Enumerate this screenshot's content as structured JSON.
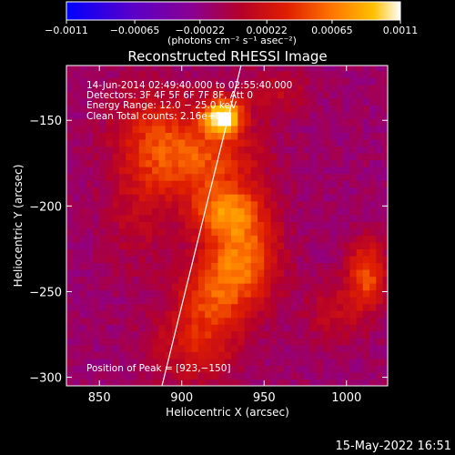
{
  "chart_data": {
    "type": "heatmap",
    "title": "Reconstructed RHESSI Image",
    "xlabel": "Heliocentric X (arcsec)",
    "ylabel": "Heliocentric Y (arcsec)",
    "xlim": [
      830,
      1025
    ],
    "ylim": [
      -305,
      -118
    ],
    "x_ticks": [
      {
        "value": 850,
        "label": "850"
      },
      {
        "value": 900,
        "label": "900"
      },
      {
        "value": 950,
        "label": "950"
      },
      {
        "value": 1000,
        "label": "1000"
      }
    ],
    "y_ticks": [
      {
        "value": -150,
        "label": "−150"
      },
      {
        "value": -200,
        "label": "−200"
      },
      {
        "value": -250,
        "label": "−250"
      },
      {
        "value": -300,
        "label": "−300"
      }
    ],
    "colorbar": {
      "range": [
        -0.0011,
        0.0011
      ],
      "ticks": [
        {
          "value": -0.0011,
          "label": "−0.0011"
        },
        {
          "value": -0.00065,
          "label": "−0.00065"
        },
        {
          "value": -0.00022,
          "label": "−0.00022"
        },
        {
          "value": 0.00022,
          "label": "0.00022"
        },
        {
          "value": 0.00065,
          "label": "0.00065"
        },
        {
          "value": 0.0011,
          "label": "0.0011"
        }
      ],
      "units": "(photons cm⁻² s⁻¹ asec⁻²)",
      "colors": [
        "#0000ff",
        "#5a00c8",
        "#8c0090",
        "#b4002a",
        "#e01e00",
        "#ff7800",
        "#ffc000",
        "#ffffff"
      ]
    },
    "peak": [
      923,
      -150
    ],
    "limb_line": [
      [
        888,
        -305
      ],
      [
        936,
        -118
      ]
    ],
    "grid": false,
    "legend": "none"
  },
  "annotations": [
    "14‐Jun‐2014 02:49:40.000 to 02:55:40.000",
    "Detectors: 3F 4F 5F 6F 7F 8F, Att 0",
    "Energy Range: 12.0 − 25.0 keV",
    "Clean     Total counts: 2.16e+04"
  ],
  "peak_label": "Position of Peak = [923,−150]",
  "footer_date": "15‐May‐2022 16:51"
}
